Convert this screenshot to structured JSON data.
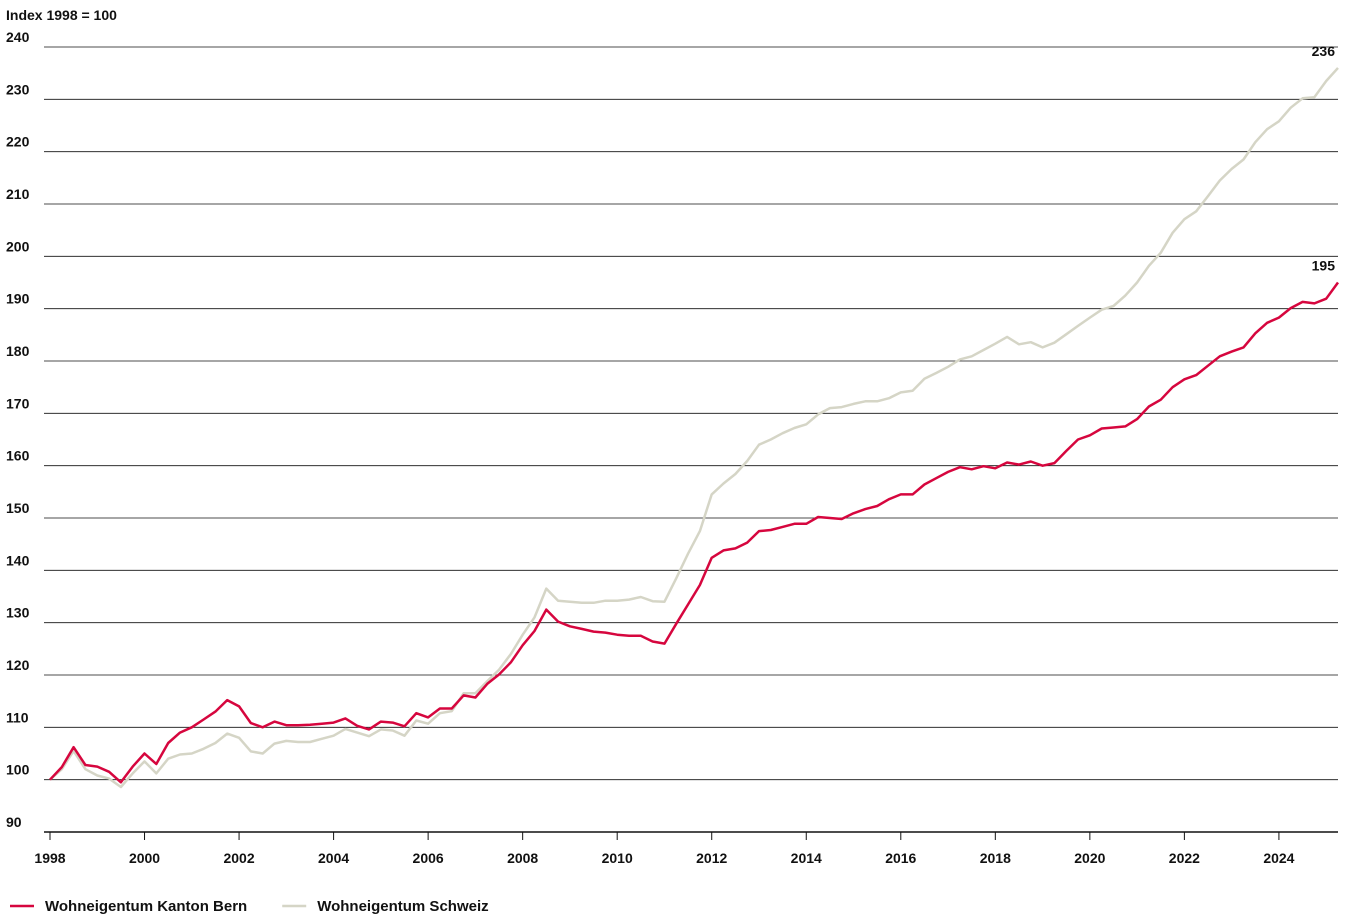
{
  "chart_data": {
    "type": "line",
    "y_label": "Index 1998 = 100",
    "x": [
      1998,
      1998.25,
      1998.5,
      1998.75,
      1999,
      1999.25,
      1999.5,
      1999.75,
      2000,
      2000.25,
      2000.5,
      2000.75,
      2001,
      2001.25,
      2001.5,
      2001.75,
      2002,
      2002.25,
      2002.5,
      2002.75,
      2003,
      2003.25,
      2003.5,
      2003.75,
      2004,
      2004.25,
      2004.5,
      2004.75,
      2005,
      2005.25,
      2005.5,
      2005.75,
      2006,
      2006.25,
      2006.5,
      2006.75,
      2007,
      2007.25,
      2007.5,
      2007.75,
      2008,
      2008.25,
      2008.5,
      2008.75,
      2009,
      2009.25,
      2009.5,
      2009.75,
      2010,
      2010.25,
      2010.5,
      2010.75,
      2011,
      2011.25,
      2011.5,
      2011.75,
      2012,
      2012.25,
      2012.5,
      2012.75,
      2013,
      2013.25,
      2013.5,
      2013.75,
      2014,
      2014.25,
      2014.5,
      2014.75,
      2015,
      2015.25,
      2015.5,
      2015.75,
      2016,
      2016.25,
      2016.5,
      2016.75,
      2017,
      2017.25,
      2017.5,
      2017.75,
      2018,
      2018.25,
      2018.5,
      2018.75,
      2019,
      2019.25,
      2019.5,
      2019.75,
      2020,
      2020.25,
      2020.5,
      2020.75,
      2021,
      2021.25,
      2021.5,
      2021.75,
      2022,
      2022.25,
      2022.5,
      2022.75,
      2023,
      2023.25,
      2023.5,
      2023.75,
      2024,
      2024.25,
      2024.5,
      2024.75,
      2025,
      2025.25
    ],
    "series": [
      {
        "name": "Wohneigentum Kanton Bern",
        "color": "#d6063e",
        "last_label": "195",
        "values": [
          100,
          102.4,
          106.2,
          102.8,
          102.5,
          101.5,
          99.5,
          102.5,
          105,
          103,
          107,
          109,
          110,
          111.5,
          113,
          115.2,
          114,
          110.8,
          110,
          111.1,
          110.4,
          110.4,
          110.5,
          110.7,
          110.9,
          111.7,
          110.3,
          109.6,
          111.1,
          110.9,
          110.2,
          112.7,
          111.9,
          113.6,
          113.6,
          116.1,
          115.7,
          118.3,
          120.1,
          122.4,
          125.7,
          128.4,
          132.5,
          130.2,
          129.3,
          128.8,
          128.3,
          128.1,
          127.7,
          127.5,
          127.5,
          126.4,
          126,
          129.8,
          133.5,
          137.2,
          142.4,
          143.8,
          144.2,
          145.3,
          147.5,
          147.7,
          148.3,
          148.9,
          148.9,
          150.2,
          150,
          149.8,
          150.9,
          151.7,
          152.3,
          153.6,
          154.5,
          154.5,
          156.4,
          157.6,
          158.8,
          159.7,
          159.3,
          159.9,
          159.5,
          160.6,
          160.2,
          160.8,
          160,
          160.5,
          162.8,
          165,
          165.8,
          167.1,
          167.3,
          167.5,
          168.9,
          171.3,
          172.6,
          175,
          176.5,
          177.3,
          179.1,
          180.9,
          181.8,
          182.6,
          185.3,
          187.3,
          188.3,
          190.1,
          191.3,
          191,
          191.9,
          195
        ]
      },
      {
        "name": "Wohneigentum Schweiz",
        "color": "#d5d5c6",
        "last_label": "236",
        "values": [
          100,
          102,
          105.5,
          102,
          100.8,
          100.2,
          98.6,
          101.2,
          103.5,
          101.2,
          104,
          104.8,
          105,
          105.9,
          107,
          108.8,
          108,
          105.4,
          105,
          106.9,
          107.4,
          107.2,
          107.2,
          107.8,
          108.4,
          109.7,
          109,
          108.3,
          109.6,
          109.4,
          108.4,
          111.3,
          110.7,
          112.7,
          113.1,
          116.5,
          116.5,
          118.8,
          121,
          124,
          127.7,
          131,
          136.5,
          134.2,
          134,
          133.8,
          133.8,
          134.2,
          134.2,
          134.4,
          134.9,
          134.1,
          134,
          138.5,
          143.2,
          147.5,
          154.5,
          156.6,
          158.4,
          160.9,
          164,
          165,
          166.2,
          167.2,
          167.9,
          169.8,
          171,
          171.2,
          171.8,
          172.3,
          172.3,
          172.9,
          174,
          174.3,
          176.6,
          177.7,
          178.9,
          180.3,
          180.9,
          182.1,
          183.3,
          184.6,
          183.2,
          183.6,
          182.6,
          183.5,
          185.1,
          186.7,
          188.3,
          189.8,
          190.5,
          192.5,
          195,
          198.2,
          200.7,
          204.5,
          207.1,
          208.6,
          211.5,
          214.5,
          216.7,
          218.5,
          221.8,
          224.3,
          225.8,
          228.4,
          230.2,
          230.4,
          233.5,
          236
        ]
      }
    ],
    "xlim": [
      1998,
      2025.25
    ],
    "xticks": [
      1998,
      2000,
      2002,
      2004,
      2006,
      2008,
      2010,
      2012,
      2014,
      2016,
      2018,
      2020,
      2022,
      2024
    ],
    "ylim": [
      90,
      240
    ],
    "yticks": [
      90,
      100,
      110,
      120,
      130,
      140,
      150,
      160,
      170,
      180,
      190,
      200,
      210,
      220,
      230,
      240
    ],
    "grid": true
  }
}
